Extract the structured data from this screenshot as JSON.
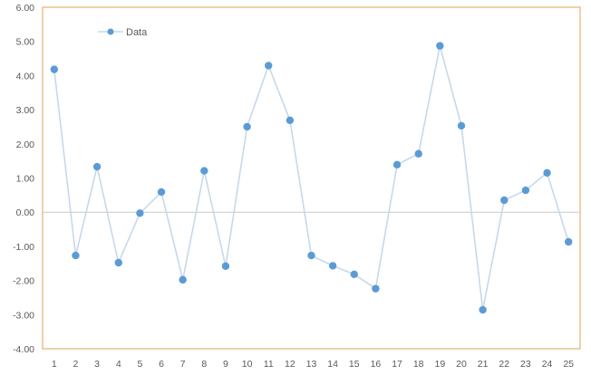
{
  "chart_data": {
    "type": "line",
    "title": "",
    "xlabel": "",
    "ylabel": "",
    "x": [
      1,
      2,
      3,
      4,
      5,
      6,
      7,
      8,
      9,
      10,
      11,
      12,
      13,
      14,
      15,
      16,
      17,
      18,
      19,
      20,
      21,
      22,
      23,
      24,
      25
    ],
    "series": [
      {
        "name": "Data",
        "values": [
          4.18,
          -1.27,
          1.33,
          -1.48,
          -0.03,
          0.59,
          -1.98,
          1.21,
          -1.58,
          2.5,
          4.29,
          2.69,
          -1.27,
          -1.57,
          -1.82,
          -2.24,
          1.39,
          1.71,
          4.87,
          2.53,
          -2.86,
          0.35,
          0.64,
          1.15,
          -0.87
        ]
      }
    ],
    "ylim": [
      -4,
      6
    ],
    "yticks": [
      "6.00",
      "5.00",
      "4.00",
      "3.00",
      "2.00",
      "1.00",
      "0.00",
      "-1.00",
      "-2.00",
      "-3.00",
      "-4.00"
    ],
    "ytick_values": [
      6,
      5,
      4,
      3,
      2,
      1,
      0,
      -1,
      -2,
      -3,
      -4
    ],
    "xticks": [
      "1",
      "2",
      "3",
      "4",
      "5",
      "6",
      "7",
      "8",
      "9",
      "10",
      "11",
      "12",
      "13",
      "14",
      "15",
      "16",
      "17",
      "18",
      "19",
      "20",
      "21",
      "22",
      "23",
      "24",
      "25"
    ],
    "legend_position": "top-left",
    "grid": false,
    "colors": {
      "line": "#c5d9ec",
      "marker": "#5b9bd5",
      "frame": "#e0a050",
      "zero_line": "#c9c9c9",
      "tick_text": "#595959"
    }
  }
}
